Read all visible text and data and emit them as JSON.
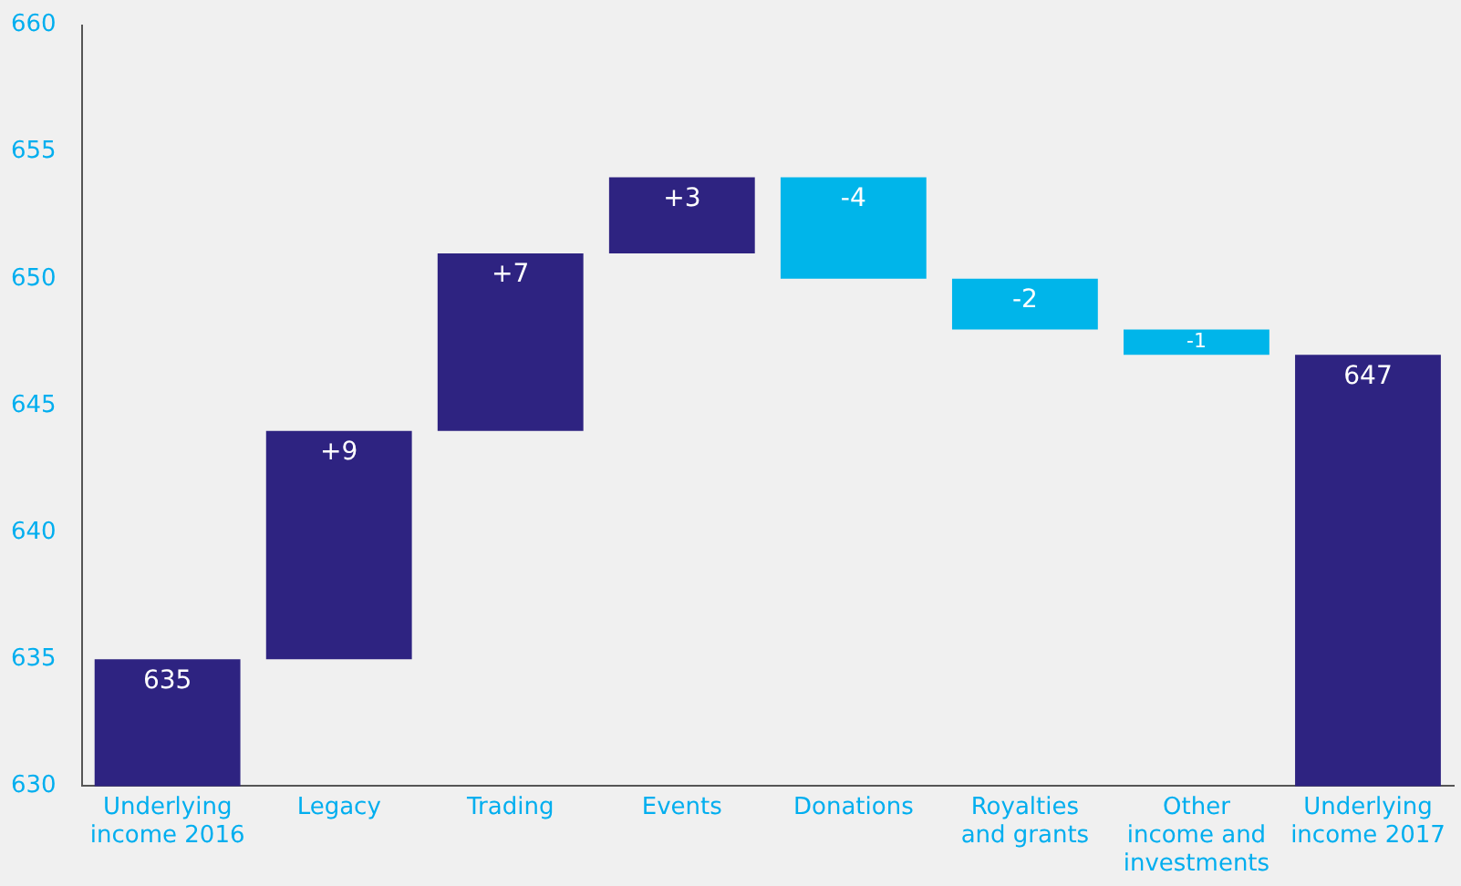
{
  "chart_data": {
    "type": "bar",
    "categories": [
      "Underlying income 2016",
      "Legacy",
      "Trading",
      "Events",
      "Donations",
      "Royalties and grants",
      "Other income and investments",
      "Underlying income 2017"
    ],
    "values": [
      635,
      9,
      7,
      3,
      -4,
      -2,
      -1,
      647
    ],
    "base": [
      null,
      635,
      644,
      651,
      654,
      650,
      648,
      null
    ],
    "colors": [
      "#2e2381",
      "#2e2381",
      "#2e2381",
      "#2e2381",
      "#00b5ea",
      "#00b5ea",
      "#00b5ea",
      "#2e2381"
    ],
    "value_labels": [
      "635",
      "+9",
      "+7",
      "+3",
      "-4",
      "-2",
      "-1",
      "647"
    ],
    "ylim": [
      630,
      660
    ],
    "yticks": [
      630,
      635,
      640,
      645,
      650,
      655,
      660
    ],
    "grid": false,
    "legend": false
  }
}
